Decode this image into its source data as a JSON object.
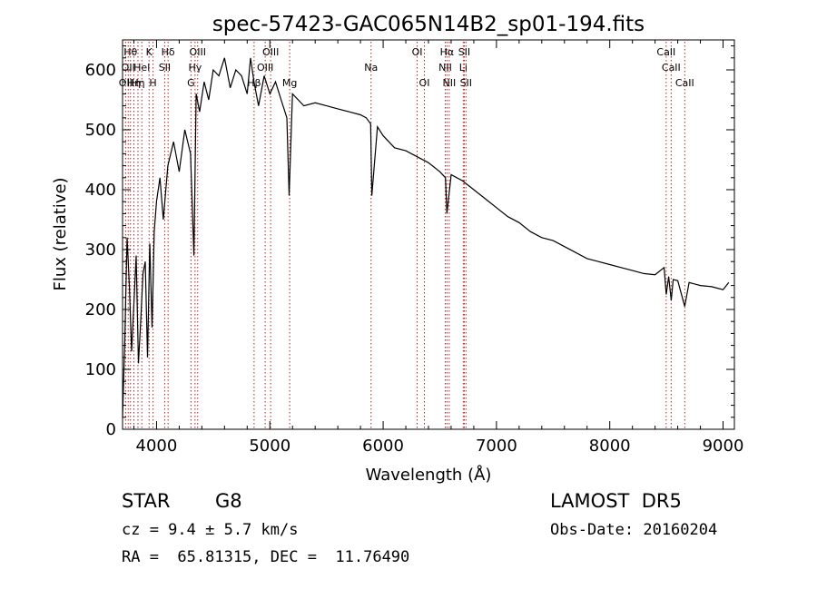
{
  "chart_data": {
    "type": "line",
    "title": "spec-57423-GAC065N14B2_sp01-194.fits",
    "xlabel": "Wavelength (Å)",
    "ylabel": "Flux (relative)",
    "xlim": [
      3700,
      9100
    ],
    "ylim": [
      0,
      650
    ],
    "x_ticks": [
      4000,
      5000,
      6000,
      7000,
      8000,
      9000
    ],
    "y_ticks": [
      0,
      100,
      200,
      300,
      400,
      500,
      600
    ],
    "grid": false,
    "series": [
      {
        "color": "#000000",
        "x": [
          3700,
          3720,
          3740,
          3760,
          3780,
          3800,
          3820,
          3840,
          3860,
          3880,
          3900,
          3920,
          3940,
          3960,
          3980,
          4000,
          4030,
          4060,
          4100,
          4150,
          4200,
          4250,
          4300,
          4330,
          4350,
          4380,
          4420,
          4460,
          4500,
          4550,
          4600,
          4650,
          4700,
          4750,
          4800,
          4830,
          4860,
          4900,
          4950,
          5000,
          5050,
          5100,
          5150,
          5170,
          5200,
          5250,
          5300,
          5400,
          5500,
          5600,
          5700,
          5800,
          5850,
          5890,
          5900,
          5950,
          6000,
          6100,
          6200,
          6300,
          6400,
          6500,
          6550,
          6563,
          6600,
          6700,
          6800,
          6900,
          7000,
          7100,
          7200,
          7300,
          7400,
          7500,
          7600,
          7700,
          7800,
          7900,
          8000,
          8100,
          8200,
          8300,
          8400,
          8480,
          8498,
          8520,
          8542,
          8560,
          8600,
          8662,
          8700,
          8800,
          8900,
          9000,
          9050
        ],
        "y": [
          20,
          150,
          320,
          240,
          130,
          210,
          290,
          110,
          180,
          260,
          280,
          120,
          310,
          170,
          330,
          380,
          420,
          350,
          440,
          480,
          430,
          500,
          460,
          290,
          560,
          530,
          580,
          550,
          600,
          590,
          620,
          570,
          600,
          590,
          560,
          620,
          580,
          540,
          590,
          560,
          580,
          550,
          520,
          390,
          560,
          550,
          540,
          545,
          540,
          535,
          530,
          525,
          520,
          510,
          390,
          505,
          490,
          470,
          465,
          455,
          445,
          430,
          420,
          360,
          425,
          415,
          400,
          385,
          370,
          355,
          345,
          330,
          320,
          315,
          305,
          295,
          285,
          280,
          275,
          270,
          265,
          260,
          258,
          270,
          225,
          255,
          215,
          250,
          248,
          205,
          245,
          240,
          238,
          233,
          245
        ]
      }
    ],
    "annotations": [
      {
        "x": 3727,
        "text": "OII",
        "row": 2
      },
      {
        "x": 3750,
        "text": "OII",
        "row": 1
      },
      {
        "x": 3770,
        "text": "Hθ",
        "row": 0
      },
      {
        "x": 3800,
        "text": "Hη",
        "row": 2
      },
      {
        "x": 3836,
        "text": "Hη",
        "row": 2
      },
      {
        "x": 3870,
        "text": "HeI",
        "row": 1
      },
      {
        "x": 3934,
        "text": "K",
        "row": 0
      },
      {
        "x": 3969,
        "text": "H",
        "row": 2
      },
      {
        "x": 4072,
        "text": "SII",
        "row": 1
      },
      {
        "x": 4102,
        "text": "Hδ",
        "row": 0
      },
      {
        "x": 4304,
        "text": "G",
        "row": 2
      },
      {
        "x": 4340,
        "text": "Hγ",
        "row": 1
      },
      {
        "x": 4363,
        "text": "OIII",
        "row": 0
      },
      {
        "x": 4861,
        "text": "Hβ",
        "row": 2
      },
      {
        "x": 4959,
        "text": "OIII",
        "row": 1
      },
      {
        "x": 5007,
        "text": "OIII",
        "row": 0
      },
      {
        "x": 5175,
        "text": "Mg",
        "row": 2
      },
      {
        "x": 5893,
        "text": "Na",
        "row": 1
      },
      {
        "x": 6300,
        "text": "OI",
        "row": 0
      },
      {
        "x": 6364,
        "text": "OI",
        "row": 2
      },
      {
        "x": 6548,
        "text": "NII",
        "row": 1
      },
      {
        "x": 6563,
        "text": "Hα",
        "row": 0
      },
      {
        "x": 6583,
        "text": "NII",
        "row": 2
      },
      {
        "x": 6707,
        "text": "Li",
        "row": 1
      },
      {
        "x": 6716,
        "text": "SII",
        "row": 0
      },
      {
        "x": 6731,
        "text": "SII",
        "row": 2
      },
      {
        "x": 8498,
        "text": "CaII",
        "row": 0
      },
      {
        "x": 8542,
        "text": "CaII",
        "row": 1
      },
      {
        "x": 8662,
        "text": "CaII",
        "row": 2
      }
    ]
  },
  "info": {
    "class_label": "STAR",
    "subclass": "G8",
    "survey": "LAMOST  DR5",
    "cz_line": "cz = 9.4 ± 5.7 km/s",
    "obs_date": "Obs-Date: 20160204",
    "coords": "RA =  65.81315, DEC =  11.76490"
  }
}
